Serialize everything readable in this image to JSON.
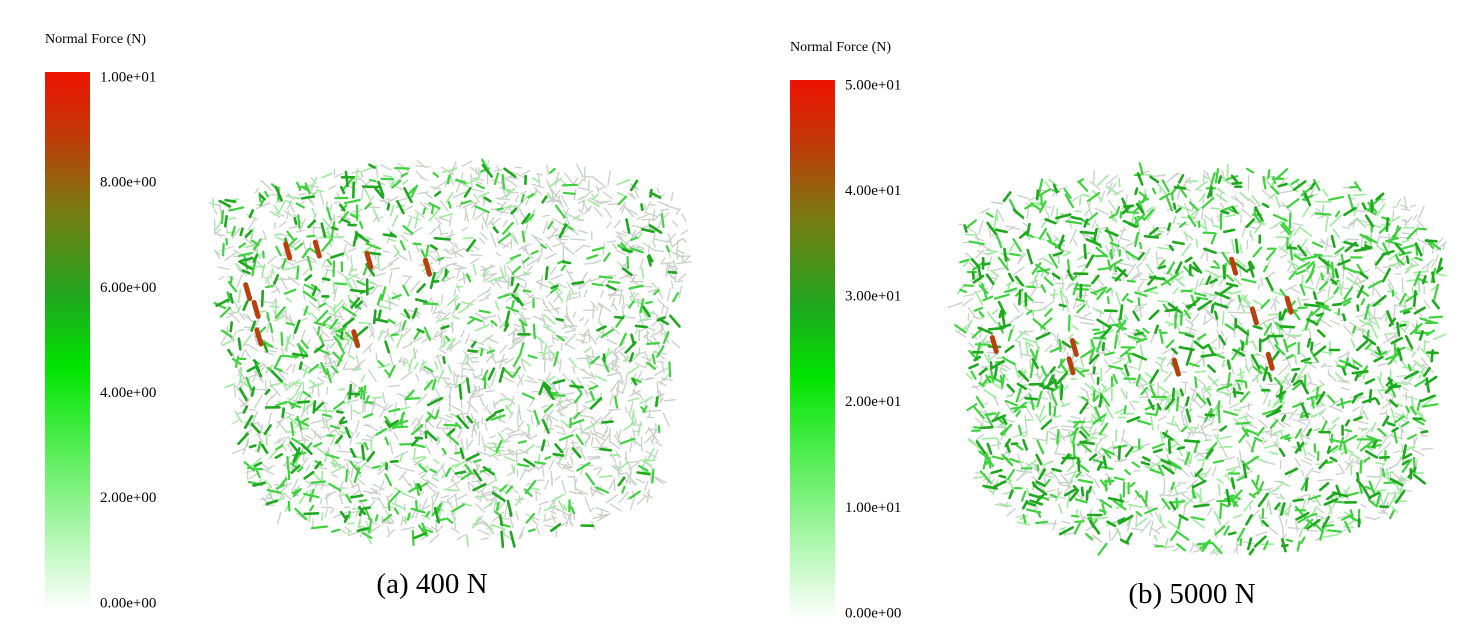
{
  "panels": [
    {
      "colorbar": {
        "title": "Normal Force (N)",
        "ticks": [
          "1.00e+01",
          "8.00e+00",
          "6.00e+00",
          "4.00e+00",
          "2.00e+00",
          "0.00e+00"
        ]
      },
      "caption": "(a) 400 N"
    },
    {
      "colorbar": {
        "title": "Normal Force (N)",
        "ticks": [
          "5.00e+01",
          "4.00e+01",
          "3.00e+01",
          "2.00e+01",
          "1.00e+01",
          "0.00e+00"
        ]
      },
      "caption": "(b) 5000 N"
    }
  ]
}
